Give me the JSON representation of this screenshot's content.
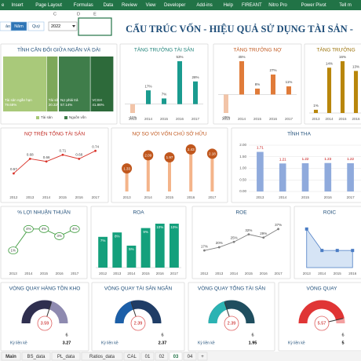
{
  "ribbon": [
    "e",
    "Insert",
    "Page Layout",
    "Formulas",
    "Data",
    "Review",
    "View",
    "Developer",
    "Add-ins",
    "Help",
    "FIREANT",
    "Nitro Pro",
    "Power Pivot",
    "Tell m"
  ],
  "controls": {
    "buttons": [
      "ảo",
      "Năm",
      "Quý"
    ],
    "year": "2022"
  },
  "columns": [
    "C",
    "D",
    "E"
  ],
  "title": "CẤU TRÚC VỐN - HIỆU QUẢ SỬ DỤNG TÀI SẢN -",
  "panels": [
    {
      "type": "treemap",
      "title": "TỈNH CÂN ĐỐI GIỮA NGẮN VÀ DÀI",
      "groups": [
        {
          "name": "Tài sản",
          "color": "#a9c97a",
          "blocks": [
            {
              "label": "Tài sản ngắn hạn",
              "value": 79.68,
              "value_label": "79.68%"
            },
            {
              "label": "Tài sản dài hạn",
              "value": 20.32,
              "value_label": "20.32%"
            }
          ]
        },
        {
          "name": "Nguồn vốn",
          "color": "#3f7d4a",
          "blocks": [
            {
              "label": "Nợ phải trả",
              "value": 57.14,
              "value_label": "57.14%"
            },
            {
              "label": "VCSH",
              "value": 41.86,
              "value_label": "41.86%"
            }
          ]
        }
      ]
    },
    {
      "type": "bar",
      "title": "TĂNG TRƯỞNG TÀI SẢN",
      "color": "#1a9b8f",
      "title_color": "#1a7f76",
      "categories": [
        "2013",
        "2014",
        "2015",
        "2016",
        "2017"
      ],
      "values": [
        -11,
        17,
        7,
        53,
        28
      ],
      "value_labels": [
        "-11%",
        "17%",
        "7%",
        "53%",
        "28%"
      ]
    },
    {
      "type": "bar",
      "title": "TĂNG TRƯỞNG NỢ",
      "color": "#e07b39",
      "title_color": "#c0571d",
      "categories": [
        "2013",
        "2014",
        "2015",
        "2016",
        "2017"
      ],
      "values": [
        -25,
        45,
        8,
        27,
        11
      ],
      "value_labels": [
        "-25%",
        "45%",
        "8%",
        "27%",
        "11%"
      ]
    },
    {
      "type": "bar",
      "title": "TĂNG TRƯỞNG",
      "color": "#b8860b",
      "title_color": "#9a7006",
      "categories": [
        "2013",
        "2014",
        "2015",
        "2016"
      ],
      "values": [
        1,
        14,
        16,
        13
      ],
      "value_labels": [
        "1%",
        "14%",
        "16%",
        "13%"
      ]
    },
    {
      "type": "line",
      "title": "NỢ TRÊN TỔNG TÀI SẢN",
      "color": "#d9342b",
      "title_color": "#c0271f",
      "categories": [
        "2012",
        "2013",
        "2014",
        "2015",
        "2016",
        "2017"
      ],
      "values": [
        0.57,
        0.68,
        0.66,
        0.71,
        0.68,
        0.74
      ]
    },
    {
      "type": "lollipop",
      "title": "NỢ SO VỚI VỐN CHỦ SỞ HỮU",
      "color": "#c0571d",
      "title_color": "#c0571d",
      "categories": [
        "2013",
        "2014",
        "2015",
        "2016",
        "2017"
      ],
      "values": [
        1.33,
        2.09,
        1.97,
        2.43,
        2.18
      ]
    },
    {
      "type": "combo",
      "title": "TỈNH THA",
      "color": "#8faadc",
      "title_color": "#1f4e79",
      "categories": [
        "2013",
        "2014",
        "2015",
        "2016",
        "2017"
      ],
      "values": [
        1.71,
        1.21,
        1.22,
        1.23,
        1.22
      ],
      "ylim": [
        0,
        2
      ],
      "yticks": [
        {
          "value": 0,
          "label": "0.00"
        },
        {
          "value": 0.5,
          "label": "0.50"
        },
        {
          "value": 1,
          "label": "1.00"
        },
        {
          "value": 1.5,
          "label": "1.50"
        },
        {
          "value": 2,
          "label": "2.00"
        }
      ]
    },
    {
      "type": "line",
      "title": "% LỢI NHUẬN THUẦN",
      "color": "#3f9b3f",
      "title_color": "#1f4e79",
      "bubble": true,
      "categories": [
        "2013",
        "2014",
        "2015",
        "2016",
        "2017"
      ],
      "values": [
        1,
        4,
        4,
        3,
        4
      ],
      "value_labels": [
        "1%",
        "4%",
        "4%",
        "3%",
        "4%"
      ]
    },
    {
      "type": "bar",
      "title": "ROA",
      "color": "#14a07c",
      "title_color": "#1f4e79",
      "labels_inside": true,
      "categories": [
        "2012",
        "2013",
        "2014",
        "2015",
        "2016",
        "2017"
      ],
      "values": [
        7,
        8,
        5,
        9,
        10,
        10
      ],
      "value_labels": [
        "7%",
        "8%",
        "5%",
        "9%",
        "10%",
        "10%"
      ]
    },
    {
      "type": "line",
      "title": "ROE",
      "color": "#7f7f7f",
      "title_color": "#1f4e79",
      "categories": [
        "2012",
        "2013",
        "2014",
        "2015",
        "2016",
        "2017"
      ],
      "values": [
        17,
        20,
        25,
        32,
        29,
        37
      ],
      "value_labels": [
        "17%",
        "20%",
        "25%",
        "32%",
        "29%",
        "37%"
      ]
    },
    {
      "type": "area",
      "title": "ROIC",
      "color": "#4a7cc4",
      "title_color": "#1f4e79",
      "categories": [
        "2013",
        "2014",
        "2015",
        "2016"
      ],
      "values": [
        12,
        11,
        11,
        11
      ]
    }
  ],
  "gauges": [
    {
      "title": "VÒNG QUAY HÀNG TỒN KHO",
      "value": 3.59,
      "max": 6,
      "previous_label": "Kỳ liền kề",
      "previous": 3.27,
      "color": "#2f2f4f",
      "track": "#8e8ab0"
    },
    {
      "title": "VÒNG QUAY TÀI SẢN NGẮN",
      "value": 2.39,
      "max": 6,
      "previous_label": "Kỳ liền kề",
      "previous": 2.37,
      "color": "#1c5fa8",
      "track": "#1f3d66"
    },
    {
      "title": "VÒNG QUAY TỔNG TÀI SẢN",
      "value": 2.39,
      "max": 6,
      "previous_label": "Kỳ liền kề",
      "previous": 1.95,
      "color": "#2bb3b3",
      "track": "#1f4e5f"
    },
    {
      "title": "VÒNG QUAY",
      "value": 5.57,
      "max": 6,
      "previous_label": "Kỳ liền kề",
      "previous": 5,
      "color": "#e03535",
      "track": "#f3a0a0"
    }
  ],
  "sheets": [
    "Main",
    "BS_data",
    "PL_data",
    "Ratios_data",
    "CAL",
    "01",
    "02",
    "03",
    "04",
    "+"
  ]
}
